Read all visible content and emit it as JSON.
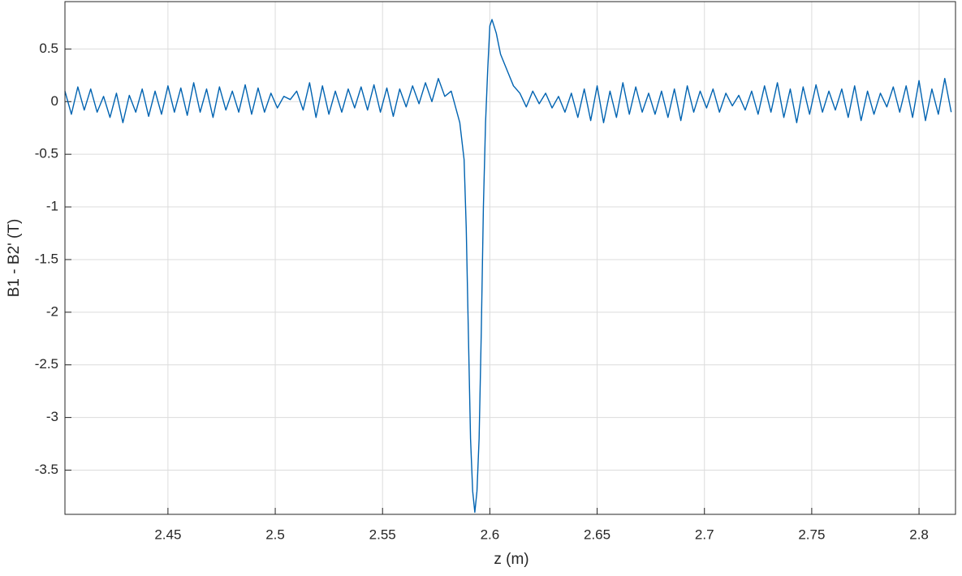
{
  "chart_data": {
    "type": "line",
    "xlabel": "z (m)",
    "ylabel": "B1 - B2' (T)",
    "color": "#0063b1",
    "grid": true,
    "xlim": [
      2.402,
      2.817
    ],
    "ylim": [
      -3.92,
      0.95
    ],
    "xticks": [
      2.45,
      2.5,
      2.55,
      2.6,
      2.65,
      2.7,
      2.75,
      2.8
    ],
    "yticks": [
      -3.5,
      -3,
      -2.5,
      -2,
      -1.5,
      -1,
      -0.5,
      0,
      0.5
    ],
    "x": [
      2.402,
      2.405,
      2.408,
      2.411,
      2.414,
      2.417,
      2.42,
      2.423,
      2.426,
      2.429,
      2.432,
      2.435,
      2.438,
      2.441,
      2.444,
      2.447,
      2.45,
      2.453,
      2.456,
      2.459,
      2.462,
      2.465,
      2.468,
      2.471,
      2.474,
      2.477,
      2.48,
      2.483,
      2.486,
      2.489,
      2.492,
      2.495,
      2.498,
      2.501,
      2.504,
      2.507,
      2.51,
      2.513,
      2.516,
      2.519,
      2.522,
      2.525,
      2.528,
      2.531,
      2.534,
      2.537,
      2.54,
      2.543,
      2.546,
      2.549,
      2.552,
      2.555,
      2.558,
      2.561,
      2.564,
      2.567,
      2.57,
      2.573,
      2.576,
      2.579,
      2.582,
      2.584,
      2.586,
      2.588,
      2.589,
      2.59,
      2.591,
      2.592,
      2.593,
      2.594,
      2.595,
      2.596,
      2.597,
      2.598,
      2.599,
      2.6,
      2.601,
      2.603,
      2.605,
      2.608,
      2.611,
      2.614,
      2.617,
      2.62,
      2.623,
      2.626,
      2.629,
      2.632,
      2.635,
      2.638,
      2.641,
      2.644,
      2.647,
      2.65,
      2.653,
      2.656,
      2.659,
      2.662,
      2.665,
      2.668,
      2.671,
      2.674,
      2.677,
      2.68,
      2.683,
      2.686,
      2.689,
      2.692,
      2.695,
      2.698,
      2.701,
      2.704,
      2.707,
      2.71,
      2.713,
      2.716,
      2.719,
      2.722,
      2.725,
      2.728,
      2.731,
      2.734,
      2.737,
      2.74,
      2.743,
      2.746,
      2.749,
      2.752,
      2.755,
      2.758,
      2.761,
      2.764,
      2.767,
      2.77,
      2.773,
      2.776,
      2.779,
      2.782,
      2.785,
      2.788,
      2.791,
      2.794,
      2.797,
      2.8,
      2.803,
      2.806,
      2.809,
      2.812,
      2.815
    ],
    "values": [
      0.1,
      -0.12,
      0.14,
      -0.08,
      0.12,
      -0.1,
      0.05,
      -0.15,
      0.08,
      -0.2,
      0.06,
      -0.1,
      0.12,
      -0.14,
      0.1,
      -0.12,
      0.15,
      -0.1,
      0.13,
      -0.13,
      0.18,
      -0.1,
      0.12,
      -0.15,
      0.14,
      -0.08,
      0.1,
      -0.1,
      0.16,
      -0.12,
      0.13,
      -0.1,
      0.08,
      -0.06,
      0.05,
      0.02,
      0.1,
      -0.08,
      0.18,
      -0.15,
      0.15,
      -0.12,
      0.1,
      -0.1,
      0.12,
      -0.06,
      0.14,
      -0.08,
      0.16,
      -0.1,
      0.13,
      -0.14,
      0.12,
      -0.05,
      0.15,
      -0.02,
      0.18,
      0.0,
      0.22,
      0.05,
      0.1,
      -0.05,
      -0.2,
      -0.55,
      -1.2,
      -2.2,
      -3.2,
      -3.7,
      -3.9,
      -3.7,
      -3.2,
      -2.2,
      -1.0,
      -0.2,
      0.3,
      0.72,
      0.78,
      0.65,
      0.45,
      0.3,
      0.15,
      0.08,
      -0.05,
      0.1,
      -0.02,
      0.08,
      -0.06,
      0.05,
      -0.1,
      0.08,
      -0.15,
      0.12,
      -0.18,
      0.15,
      -0.2,
      0.1,
      -0.15,
      0.18,
      -0.12,
      0.14,
      -0.1,
      0.08,
      -0.12,
      0.1,
      -0.15,
      0.12,
      -0.18,
      0.15,
      -0.1,
      0.1,
      -0.06,
      0.12,
      -0.1,
      0.08,
      -0.04,
      0.06,
      -0.08,
      0.1,
      -0.12,
      0.15,
      -0.1,
      0.18,
      -0.15,
      0.12,
      -0.2,
      0.14,
      -0.12,
      0.16,
      -0.1,
      0.1,
      -0.08,
      0.12,
      -0.15,
      0.15,
      -0.18,
      0.1,
      -0.12,
      0.08,
      -0.05,
      0.14,
      -0.1,
      0.15,
      -0.15,
      0.2,
      -0.18,
      0.12,
      -0.12,
      0.22,
      -0.1
    ]
  }
}
